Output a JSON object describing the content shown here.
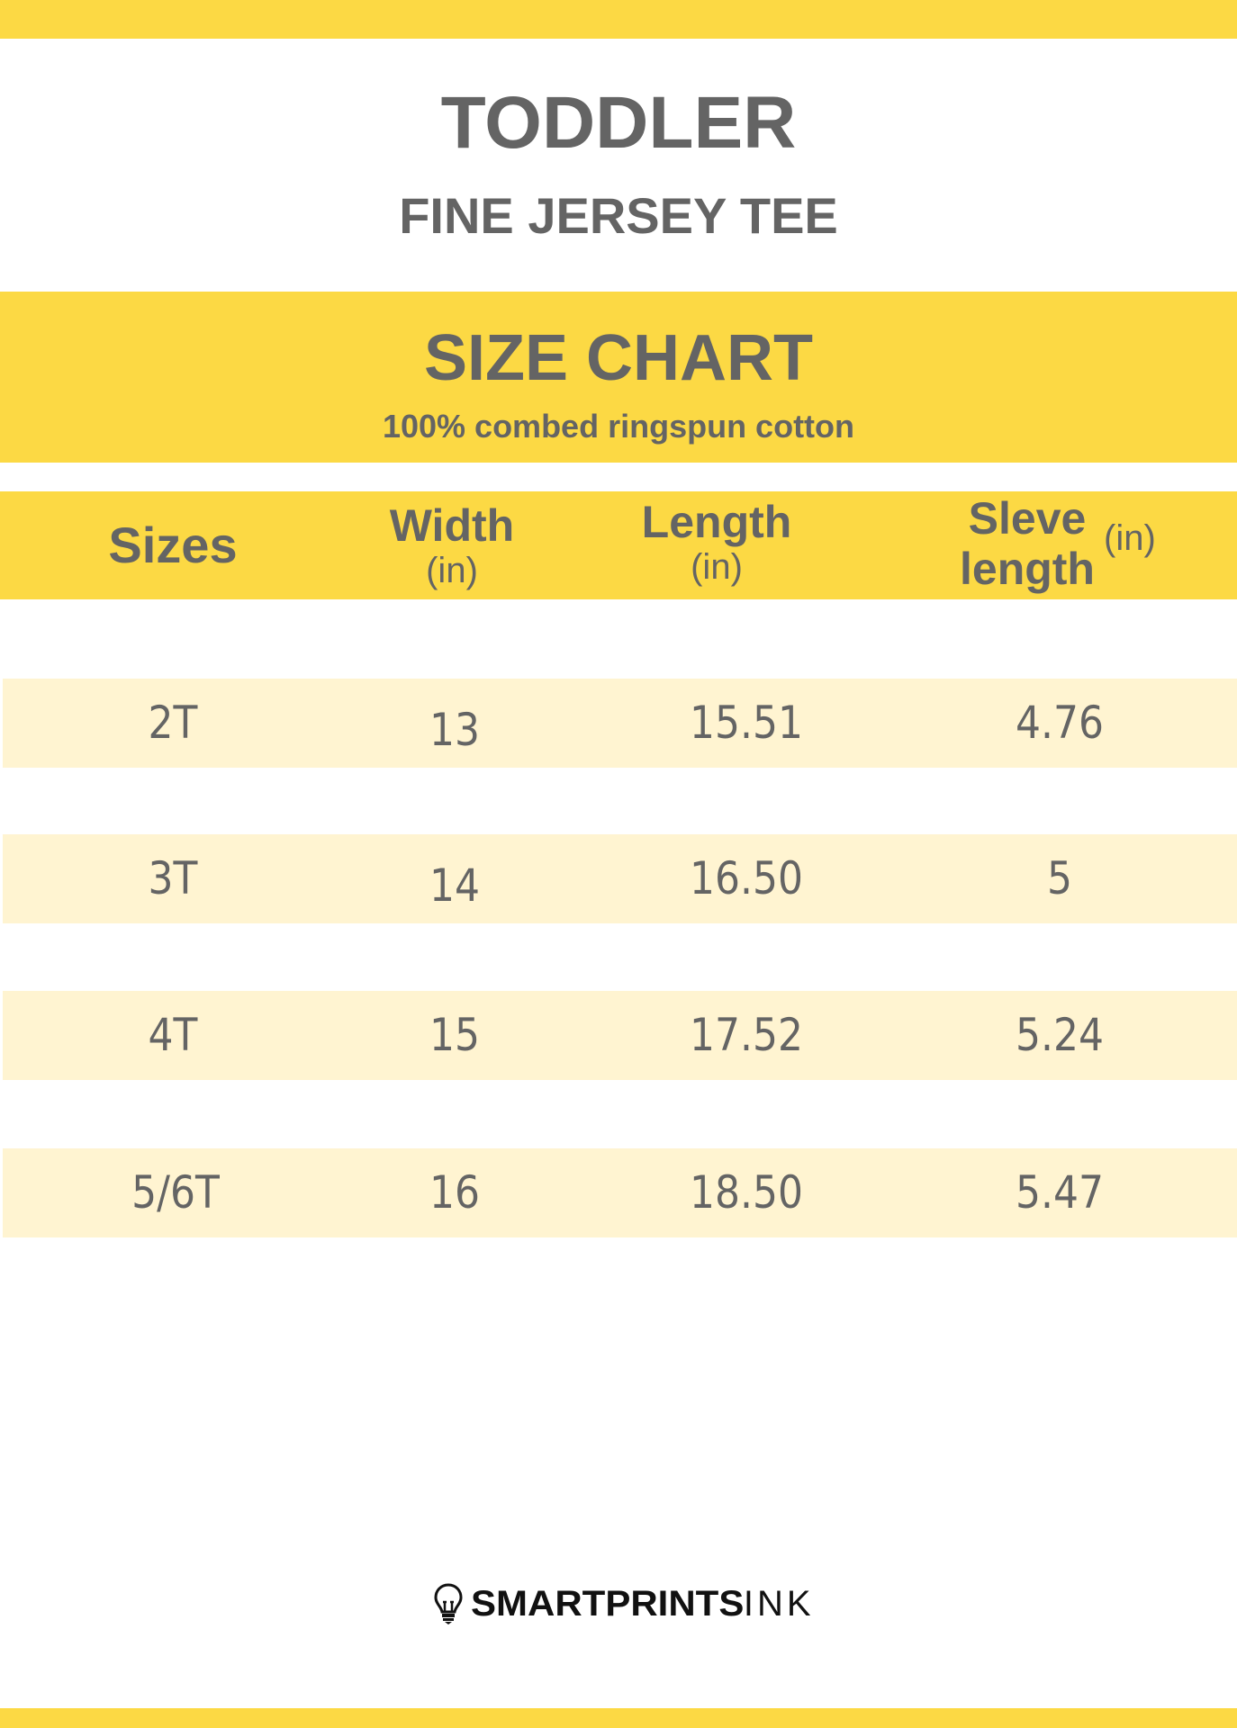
{
  "header": {
    "title": "TODDLER",
    "subtitle": "FINE JERSEY TEE"
  },
  "banner": {
    "title": "SIZE CHART",
    "subtitle": "100% combed ringspun cotton"
  },
  "table": {
    "columns": [
      {
        "name": "Sizes",
        "unit": ""
      },
      {
        "name": "Width",
        "unit": "(in)"
      },
      {
        "name": "Length",
        "unit": "(in)"
      },
      {
        "name_line1": "Sleve",
        "name_line2": "length",
        "unit": "(in)"
      }
    ],
    "rows": [
      [
        "2T",
        "13",
        "15.51",
        "4.76"
      ],
      [
        "3T",
        "14",
        "16.50",
        "5"
      ],
      [
        "4T",
        "15",
        "17.52",
        "5.24"
      ],
      [
        "5/6T",
        "16",
        "18.50",
        "5.47"
      ]
    ]
  },
  "footer": {
    "logo_text": "SMARTPRINTSINK",
    "logo_bold": "SMARTPRINTS",
    "logo_light": "INK",
    "logo_icon": "lightbulb-icon"
  },
  "colors": {
    "accent": "#FCD944",
    "row_bg": "#FFF4D1",
    "text": "#646464"
  }
}
